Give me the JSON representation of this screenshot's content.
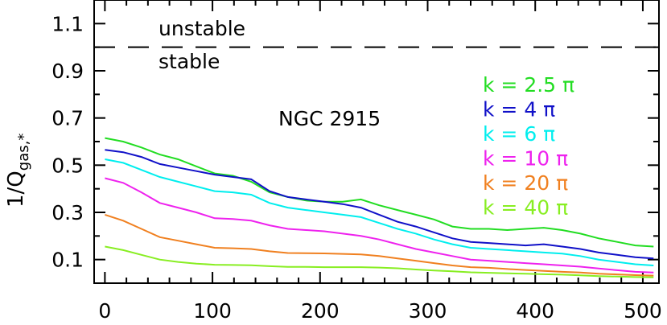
{
  "chart_data": {
    "type": "line",
    "title": "",
    "xlabel": "",
    "ylabel": "1/Q",
    "ylabel_sub": "gas,*",
    "xlim": [
      -10,
      515
    ],
    "ylim": [
      0.0,
      1.2
    ],
    "xticks": [
      0,
      100,
      200,
      300,
      400,
      500
    ],
    "yticks": [
      0.1,
      0.3,
      0.5,
      0.7,
      0.9,
      1.1
    ],
    "xtick_labels": [
      "0",
      "100",
      "200",
      "300",
      "400",
      "500"
    ],
    "ytick_labels": [
      "0.1",
      "0.3",
      "0.5",
      "0.7",
      "0.9",
      "1.1"
    ],
    "grid": false,
    "legend_position": "right",
    "galaxy_label": "NGC 2915",
    "threshold": {
      "y": 1.0,
      "style": "dashed",
      "label_above": "unstable",
      "label_below": "stable"
    },
    "x": [
      0,
      17,
      34,
      51,
      68,
      85,
      102,
      119,
      136,
      153,
      170,
      187,
      204,
      221,
      238,
      255,
      272,
      289,
      306,
      323,
      340,
      357,
      374,
      391,
      408,
      425,
      442,
      459,
      476,
      493,
      510
    ],
    "series": [
      {
        "name": "k = 2.5 π",
        "color": "#22dd22",
        "values": [
          0.615,
          0.6,
          0.575,
          0.545,
          0.525,
          0.495,
          0.465,
          0.455,
          0.43,
          0.385,
          0.365,
          0.35,
          0.345,
          0.345,
          0.355,
          0.33,
          0.31,
          0.29,
          0.27,
          0.24,
          0.23,
          0.23,
          0.225,
          0.23,
          0.235,
          0.225,
          0.21,
          0.19,
          0.175,
          0.16,
          0.155
        ]
      },
      {
        "name": "k = 4 π",
        "color": "#1010c8",
        "values": [
          0.565,
          0.555,
          0.535,
          0.505,
          0.49,
          0.475,
          0.46,
          0.45,
          0.44,
          0.39,
          0.365,
          0.355,
          0.345,
          0.335,
          0.32,
          0.29,
          0.26,
          0.24,
          0.215,
          0.19,
          0.175,
          0.17,
          0.165,
          0.16,
          0.165,
          0.155,
          0.145,
          0.13,
          0.12,
          0.11,
          0.105
        ]
      },
      {
        "name": "k = 6 π",
        "color": "#00eeee",
        "values": [
          0.525,
          0.51,
          0.48,
          0.45,
          0.43,
          0.41,
          0.39,
          0.385,
          0.375,
          0.34,
          0.32,
          0.31,
          0.3,
          0.29,
          0.28,
          0.255,
          0.23,
          0.21,
          0.185,
          0.165,
          0.15,
          0.145,
          0.14,
          0.135,
          0.13,
          0.125,
          0.115,
          0.1,
          0.09,
          0.08,
          0.075
        ]
      },
      {
        "name": "k = 10 π",
        "color": "#ee22ee",
        "values": [
          0.445,
          0.425,
          0.385,
          0.34,
          0.32,
          0.3,
          0.275,
          0.272,
          0.265,
          0.245,
          0.23,
          0.225,
          0.22,
          0.21,
          0.2,
          0.185,
          0.165,
          0.145,
          0.13,
          0.115,
          0.1,
          0.095,
          0.09,
          0.085,
          0.08,
          0.075,
          0.07,
          0.062,
          0.055,
          0.048,
          0.045
        ]
      },
      {
        "name": "k = 20 π",
        "color": "#f08020",
        "values": [
          0.29,
          0.265,
          0.23,
          0.195,
          0.18,
          0.165,
          0.15,
          0.148,
          0.145,
          0.135,
          0.128,
          0.127,
          0.126,
          0.124,
          0.122,
          0.115,
          0.105,
          0.095,
          0.085,
          0.075,
          0.068,
          0.065,
          0.06,
          0.056,
          0.052,
          0.048,
          0.045,
          0.04,
          0.037,
          0.034,
          0.032
        ]
      },
      {
        "name": "k = 40 π",
        "color": "#88ee22",
        "values": [
          0.155,
          0.14,
          0.12,
          0.1,
          0.09,
          0.083,
          0.078,
          0.077,
          0.076,
          0.072,
          0.069,
          0.069,
          0.068,
          0.068,
          0.068,
          0.066,
          0.063,
          0.058,
          0.054,
          0.05,
          0.046,
          0.044,
          0.042,
          0.04,
          0.038,
          0.036,
          0.033,
          0.03,
          0.028,
          0.026,
          0.025
        ]
      }
    ]
  }
}
